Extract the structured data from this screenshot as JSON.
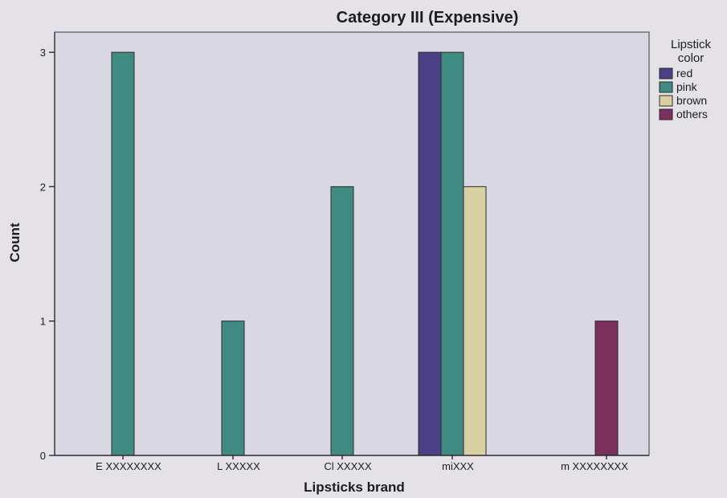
{
  "chart_data": {
    "type": "bar",
    "title": "Category III (Expensive)",
    "xlabel": "Lipsticks brand",
    "ylabel": "Count",
    "categories": [
      "E XXXXXXXX",
      "L XXXXX",
      "Cl XXXXX",
      "miXXX",
      "m XXXXXXXX"
    ],
    "ylim": [
      0,
      3.15
    ],
    "yticks": [
      0,
      1,
      2,
      3
    ],
    "legend": {
      "title_lines": [
        "Lipstick",
        "color"
      ],
      "position": "right"
    },
    "series": [
      {
        "name": "red",
        "color": "#4b3f86",
        "values": [
          0,
          0,
          0,
          3,
          0
        ]
      },
      {
        "name": "pink",
        "color": "#3f8a83",
        "values": [
          3,
          1,
          2,
          3,
          0
        ]
      },
      {
        "name": "brown",
        "color": "#d8d0a2",
        "values": [
          0,
          0,
          0,
          2,
          0
        ]
      },
      {
        "name": "others",
        "color": "#7a2f5c",
        "values": [
          0,
          0,
          0,
          0,
          1
        ]
      }
    ],
    "grid": false
  }
}
